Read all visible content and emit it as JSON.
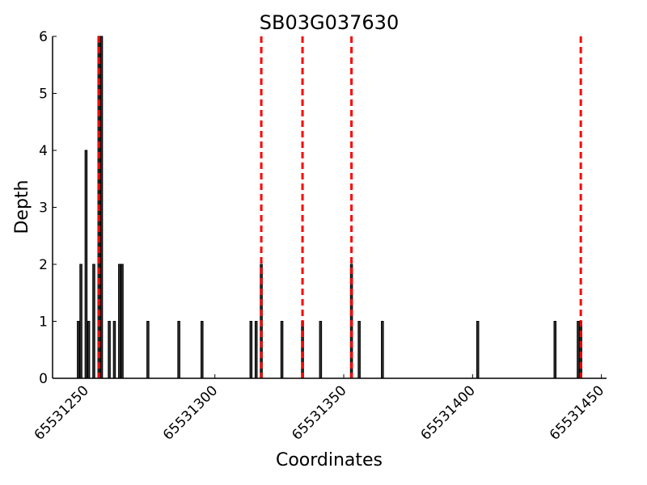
{
  "chart_data": {
    "type": "bar",
    "title": "SB03G037630",
    "xlabel": "Coordinates",
    "ylabel": "Depth",
    "x": [
      65531247,
      65531248,
      65531250,
      65531251,
      65531253,
      65531255,
      65531256,
      65531259,
      65531261,
      65531263,
      65531264,
      65531274,
      65531286,
      65531295,
      65531314,
      65531316,
      65531318,
      65531326,
      65531334,
      65531341,
      65531353,
      65531356,
      65531365,
      65531402,
      65531432,
      65531441,
      65531442
    ],
    "values": [
      1,
      2,
      4,
      1,
      2,
      6,
      6,
      1,
      1,
      2,
      2,
      1,
      1,
      1,
      1,
      1,
      2,
      1,
      1,
      1,
      2,
      1,
      1,
      1,
      1,
      1,
      1
    ],
    "color": "#333333",
    "vlines": [
      65531255,
      65531318,
      65531334,
      65531353,
      65531442
    ],
    "vline_color": "#ff0000",
    "xlim": [
      65531237,
      65531452
    ],
    "xticks": [
      65531250,
      65531300,
      65531350,
      65531400,
      65531450
    ],
    "ylim": [
      0,
      6
    ],
    "yticks": [
      0,
      1,
      2,
      3,
      4,
      5,
      6
    ]
  }
}
